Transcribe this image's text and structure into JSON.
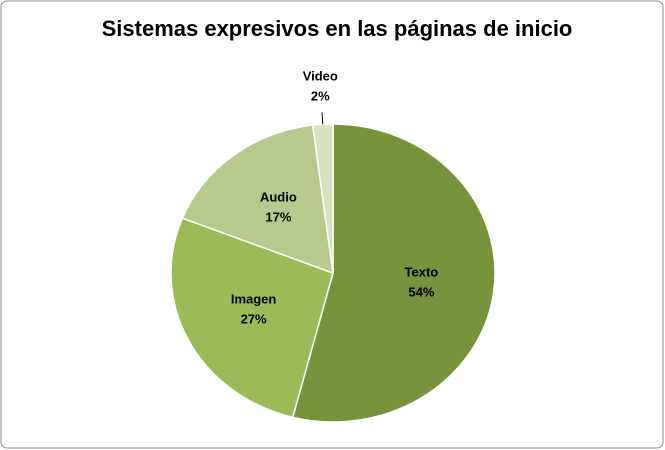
{
  "chart_data": {
    "type": "pie",
    "title": "Sistemas expresivos en las páginas de inicio",
    "categories": [
      "Texto",
      "Imagen",
      "Audio",
      "Video"
    ],
    "values": [
      54,
      27,
      17,
      2
    ],
    "value_labels": [
      "54%",
      "27%",
      "17%",
      "2%"
    ],
    "colors": [
      "#77933c",
      "#9bbb59",
      "#b5ca8c",
      "#d7e3bf"
    ]
  }
}
